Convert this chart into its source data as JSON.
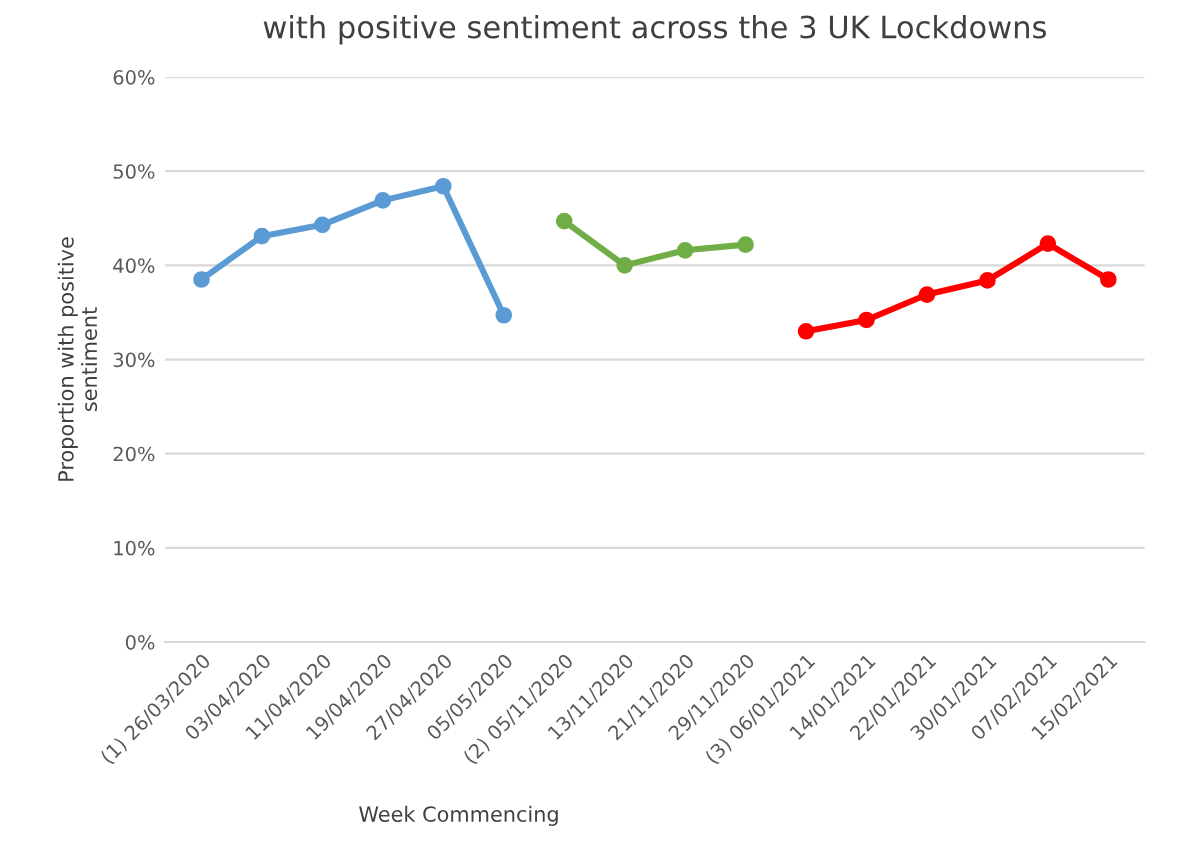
{
  "chart_data": {
    "type": "line",
    "title": "with positive sentiment across the 3 UK Lockdowns",
    "xlabel": "Week Commencing",
    "ylabel": "Proportion with positive\nsentiment",
    "categories": [
      "(1) 26/03/2020",
      "03/04/2020",
      "11/04/2020",
      "19/04/2020",
      "27/04/2020",
      "05/05/2020",
      "(2) 05/11/2020",
      "13/11/2020",
      "21/11/2020",
      "29/11/2020",
      "(3) 06/01/2021",
      "14/01/2021",
      "22/01/2021",
      "30/01/2021",
      "07/02/2021",
      "15/02/2021"
    ],
    "series": [
      {
        "color": "#5b9bd5",
        "values": [
          38.5,
          43.1,
          44.3,
          46.9,
          48.4,
          34.7,
          null,
          null,
          null,
          null,
          null,
          null,
          null,
          null,
          null,
          null
        ]
      },
      {
        "color": "#70ad47",
        "values": [
          null,
          null,
          null,
          null,
          null,
          null,
          44.7,
          40.0,
          41.6,
          42.2,
          null,
          null,
          null,
          null,
          null,
          null
        ]
      },
      {
        "color": "#ff0000",
        "values": [
          null,
          null,
          null,
          null,
          null,
          null,
          null,
          null,
          null,
          null,
          33.0,
          34.2,
          36.9,
          38.4,
          42.3,
          38.5
        ]
      }
    ],
    "ylim": [
      0,
      60
    ],
    "yticks": [
      {
        "value": 0,
        "label": "0%"
      },
      {
        "value": 10,
        "label": "10%"
      },
      {
        "value": 20,
        "label": "20%"
      },
      {
        "value": 30,
        "label": "30%"
      },
      {
        "value": 40,
        "label": "40%"
      },
      {
        "value": 50,
        "label": "50%"
      },
      {
        "value": 60,
        "label": "60%"
      }
    ],
    "grid": "y",
    "marker": "circle",
    "line_style": "solid"
  }
}
